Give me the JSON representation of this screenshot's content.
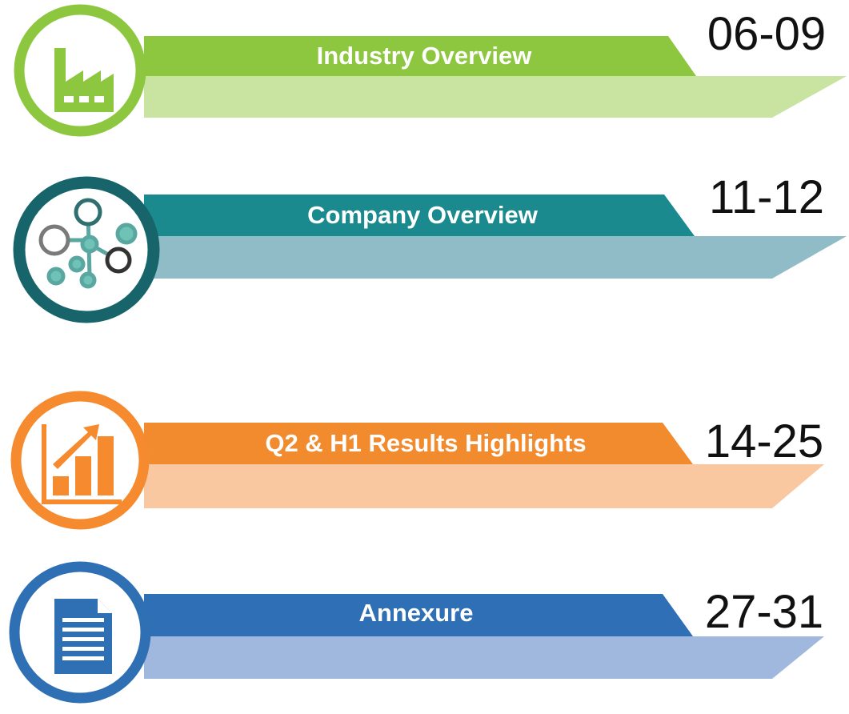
{
  "sections": [
    {
      "title": "Industry Overview",
      "pages": "06-09"
    },
    {
      "title": "Company Overview",
      "pages": "11-12"
    },
    {
      "title": "Q2 & H1 Results Highlights",
      "pages": "14-25"
    },
    {
      "title": "Annexure",
      "pages": "27-31"
    }
  ]
}
